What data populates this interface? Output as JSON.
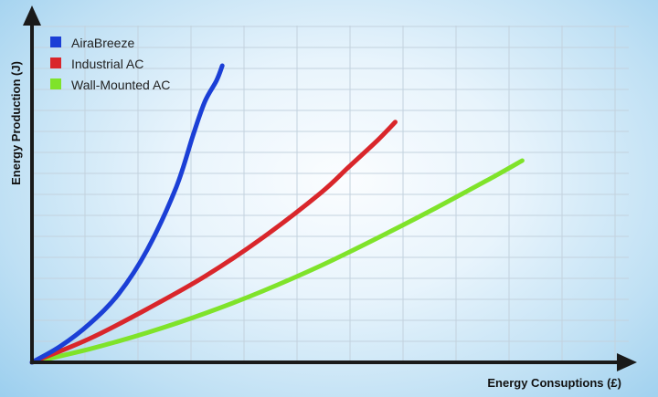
{
  "chart_data": {
    "type": "line",
    "title": "",
    "xlabel": "Energy Consuptions (£)",
    "ylabel": "Energy Production (J)",
    "grid": true,
    "legend_position": "top-left",
    "xlim": [
      0,
      100
    ],
    "ylim": [
      0,
      100
    ],
    "series": [
      {
        "name": "AiraBreeze",
        "color": "#1b3fd6",
        "x": [
          0,
          5,
          10,
          15,
          20,
          25,
          28,
          30,
          32,
          33
        ],
        "y": [
          0,
          5.5,
          13,
          23,
          38,
          59,
          77,
          88,
          95,
          100
        ]
      },
      {
        "name": "Industrial AC",
        "color": "#d9262b",
        "x": [
          0,
          10,
          20,
          30,
          40,
          50,
          55,
          60,
          63
        ],
        "y": [
          0,
          8,
          18,
          29,
          42,
          57,
          66,
          75,
          81
        ]
      },
      {
        "name": "Wall-Mounted AC",
        "color": "#7fe32a",
        "x": [
          0,
          10,
          20,
          30,
          40,
          50,
          60,
          70,
          80,
          85
        ],
        "y": [
          0,
          4.5,
          10,
          16.5,
          24,
          32.5,
          42,
          52,
          62.5,
          68
        ]
      }
    ]
  }
}
